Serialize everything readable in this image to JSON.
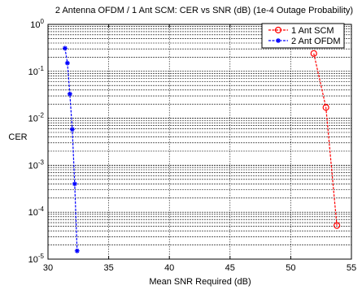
{
  "chart_data": {
    "type": "line",
    "title": "2 Antenna OFDM / 1 Ant SCM: CER vs SNR (dB) (1e-4 Outage Probability)",
    "xlabel": "Mean SNR Required (dB)",
    "ylabel": "CER",
    "xlim": [
      30,
      55
    ],
    "ylim": [
      1e-05,
      1
    ],
    "yscale": "log",
    "grid": true,
    "legend_position": "top-right",
    "x_ticks": [
      30,
      35,
      40,
      45,
      50,
      55
    ],
    "y_tick_base": "10",
    "y_tick_exponents": [
      "0",
      "-1",
      "-2",
      "-3",
      "-4",
      "-5"
    ],
    "series": [
      {
        "name": "1 Ant SCM",
        "color": "#ff0000",
        "marker": "circle",
        "points": [
          {
            "x": 51.9,
            "y": 0.24
          },
          {
            "x": 52.9,
            "y": 0.017
          },
          {
            "x": 53.8,
            "y": 5.2e-05
          }
        ]
      },
      {
        "name": "2 Ant OFDM",
        "color": "#0000ff",
        "marker": "star",
        "points": [
          {
            "x": 31.4,
            "y": 0.31
          },
          {
            "x": 31.6,
            "y": 0.15
          },
          {
            "x": 31.8,
            "y": 0.033
          },
          {
            "x": 32.0,
            "y": 0.0058
          },
          {
            "x": 32.2,
            "y": 0.0004
          },
          {
            "x": 32.4,
            "y": 1.5e-05
          }
        ]
      }
    ]
  }
}
